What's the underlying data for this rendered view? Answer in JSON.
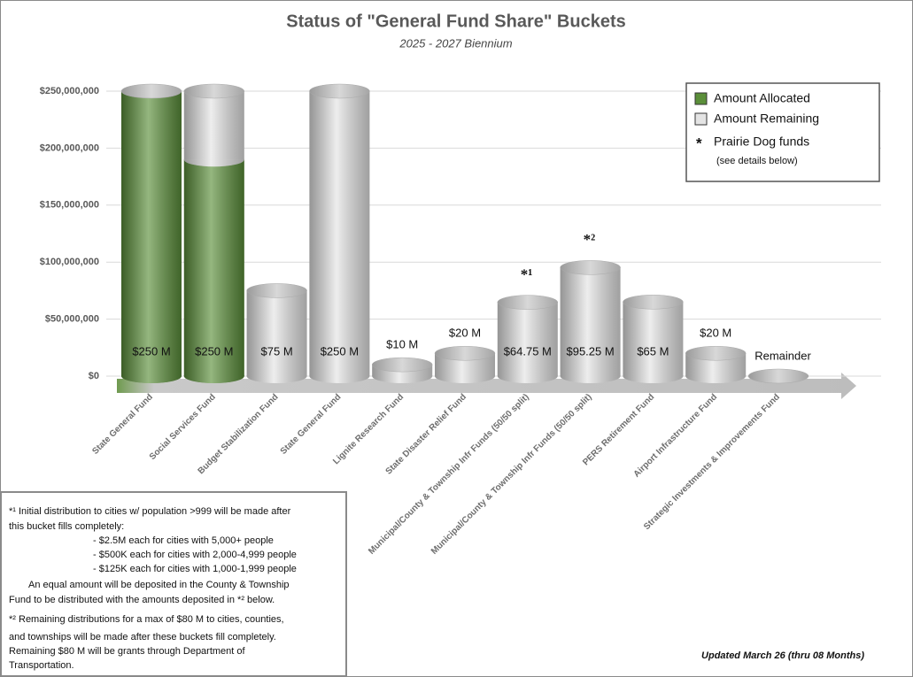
{
  "chart_data": {
    "type": "bar",
    "stacked": true,
    "title": "Status of \"General Fund Share\" Buckets",
    "subtitle": "2025 - 2027 Biennium",
    "categories": [
      "State General Fund",
      "Social Services Fund",
      "Budget Stabilization Fund",
      "State General Fund",
      "Lignite Research Fund",
      "State Disaster Relief Fund",
      "Municipal/County & Township Infr Funds (50/50 split)",
      "Municipal/County & Township Infr Funds (50/50 split)",
      "PERS Retirement Fund",
      "Airport Infrastructure Fund",
      "Strategic Investments & Improvements Fund"
    ],
    "series": [
      {
        "name": "Amount Allocated",
        "color": "#5b8f3a",
        "values": [
          250000000,
          190000000,
          0,
          0,
          0,
          0,
          0,
          0,
          0,
          0,
          0
        ]
      },
      {
        "name": "Amount Remaining",
        "color": "#e4e4e4",
        "values": [
          0,
          60000000,
          75000000,
          250000000,
          10000000,
          20000000,
          64750000,
          95250000,
          65000000,
          20000000,
          0
        ]
      }
    ],
    "value_labels": [
      "$250 M",
      "$250 M",
      "$75 M",
      "$250 M",
      "$10 M",
      "$20 M",
      "$64.75 M",
      "$95.25 M",
      "$65 M",
      "$20 M",
      "Remainder"
    ],
    "markers": [
      null,
      null,
      null,
      null,
      null,
      null,
      "*¹",
      "*²",
      null,
      null,
      null
    ],
    "ylim": [
      0,
      250000000
    ],
    "yticks": [
      {
        "value": 0,
        "label": "$0"
      },
      {
        "value": 50000000,
        "label": "$50,000,000"
      },
      {
        "value": 100000000,
        "label": "$100,000,000"
      },
      {
        "value": 150000000,
        "label": "$150,000,000"
      },
      {
        "value": 200000000,
        "label": "$200,000,000"
      },
      {
        "value": 250000000,
        "label": "$250,000,000"
      }
    ],
    "grid": true,
    "legend_position": "upper right",
    "legend_note": {
      "symbol": "*",
      "text": "Prairie Dog funds",
      "detail": "(see details below)"
    },
    "notes": [
      "*¹ Initial distribution to cities w/ population >999 will be made after",
      "this bucket fills completely:",
      "- $2.5M each for cities with 5,000+ people",
      "- $500K each for cities with 2,000-4,999 people",
      "- $125K each for cities with 1,000-1,999 people",
      "An equal amount will be deposited in the County & Township",
      "Fund to be distributed with the amounts deposited in *² below.",
      "*² Remaining distributions for a max of $80 M to cities, counties,",
      "and townships will be made after these buckets fill completely.",
      "Remaining $80 M will be grants through Department of",
      "Transportation."
    ],
    "updated": "Updated March 26 (thru 08 Months)"
  }
}
